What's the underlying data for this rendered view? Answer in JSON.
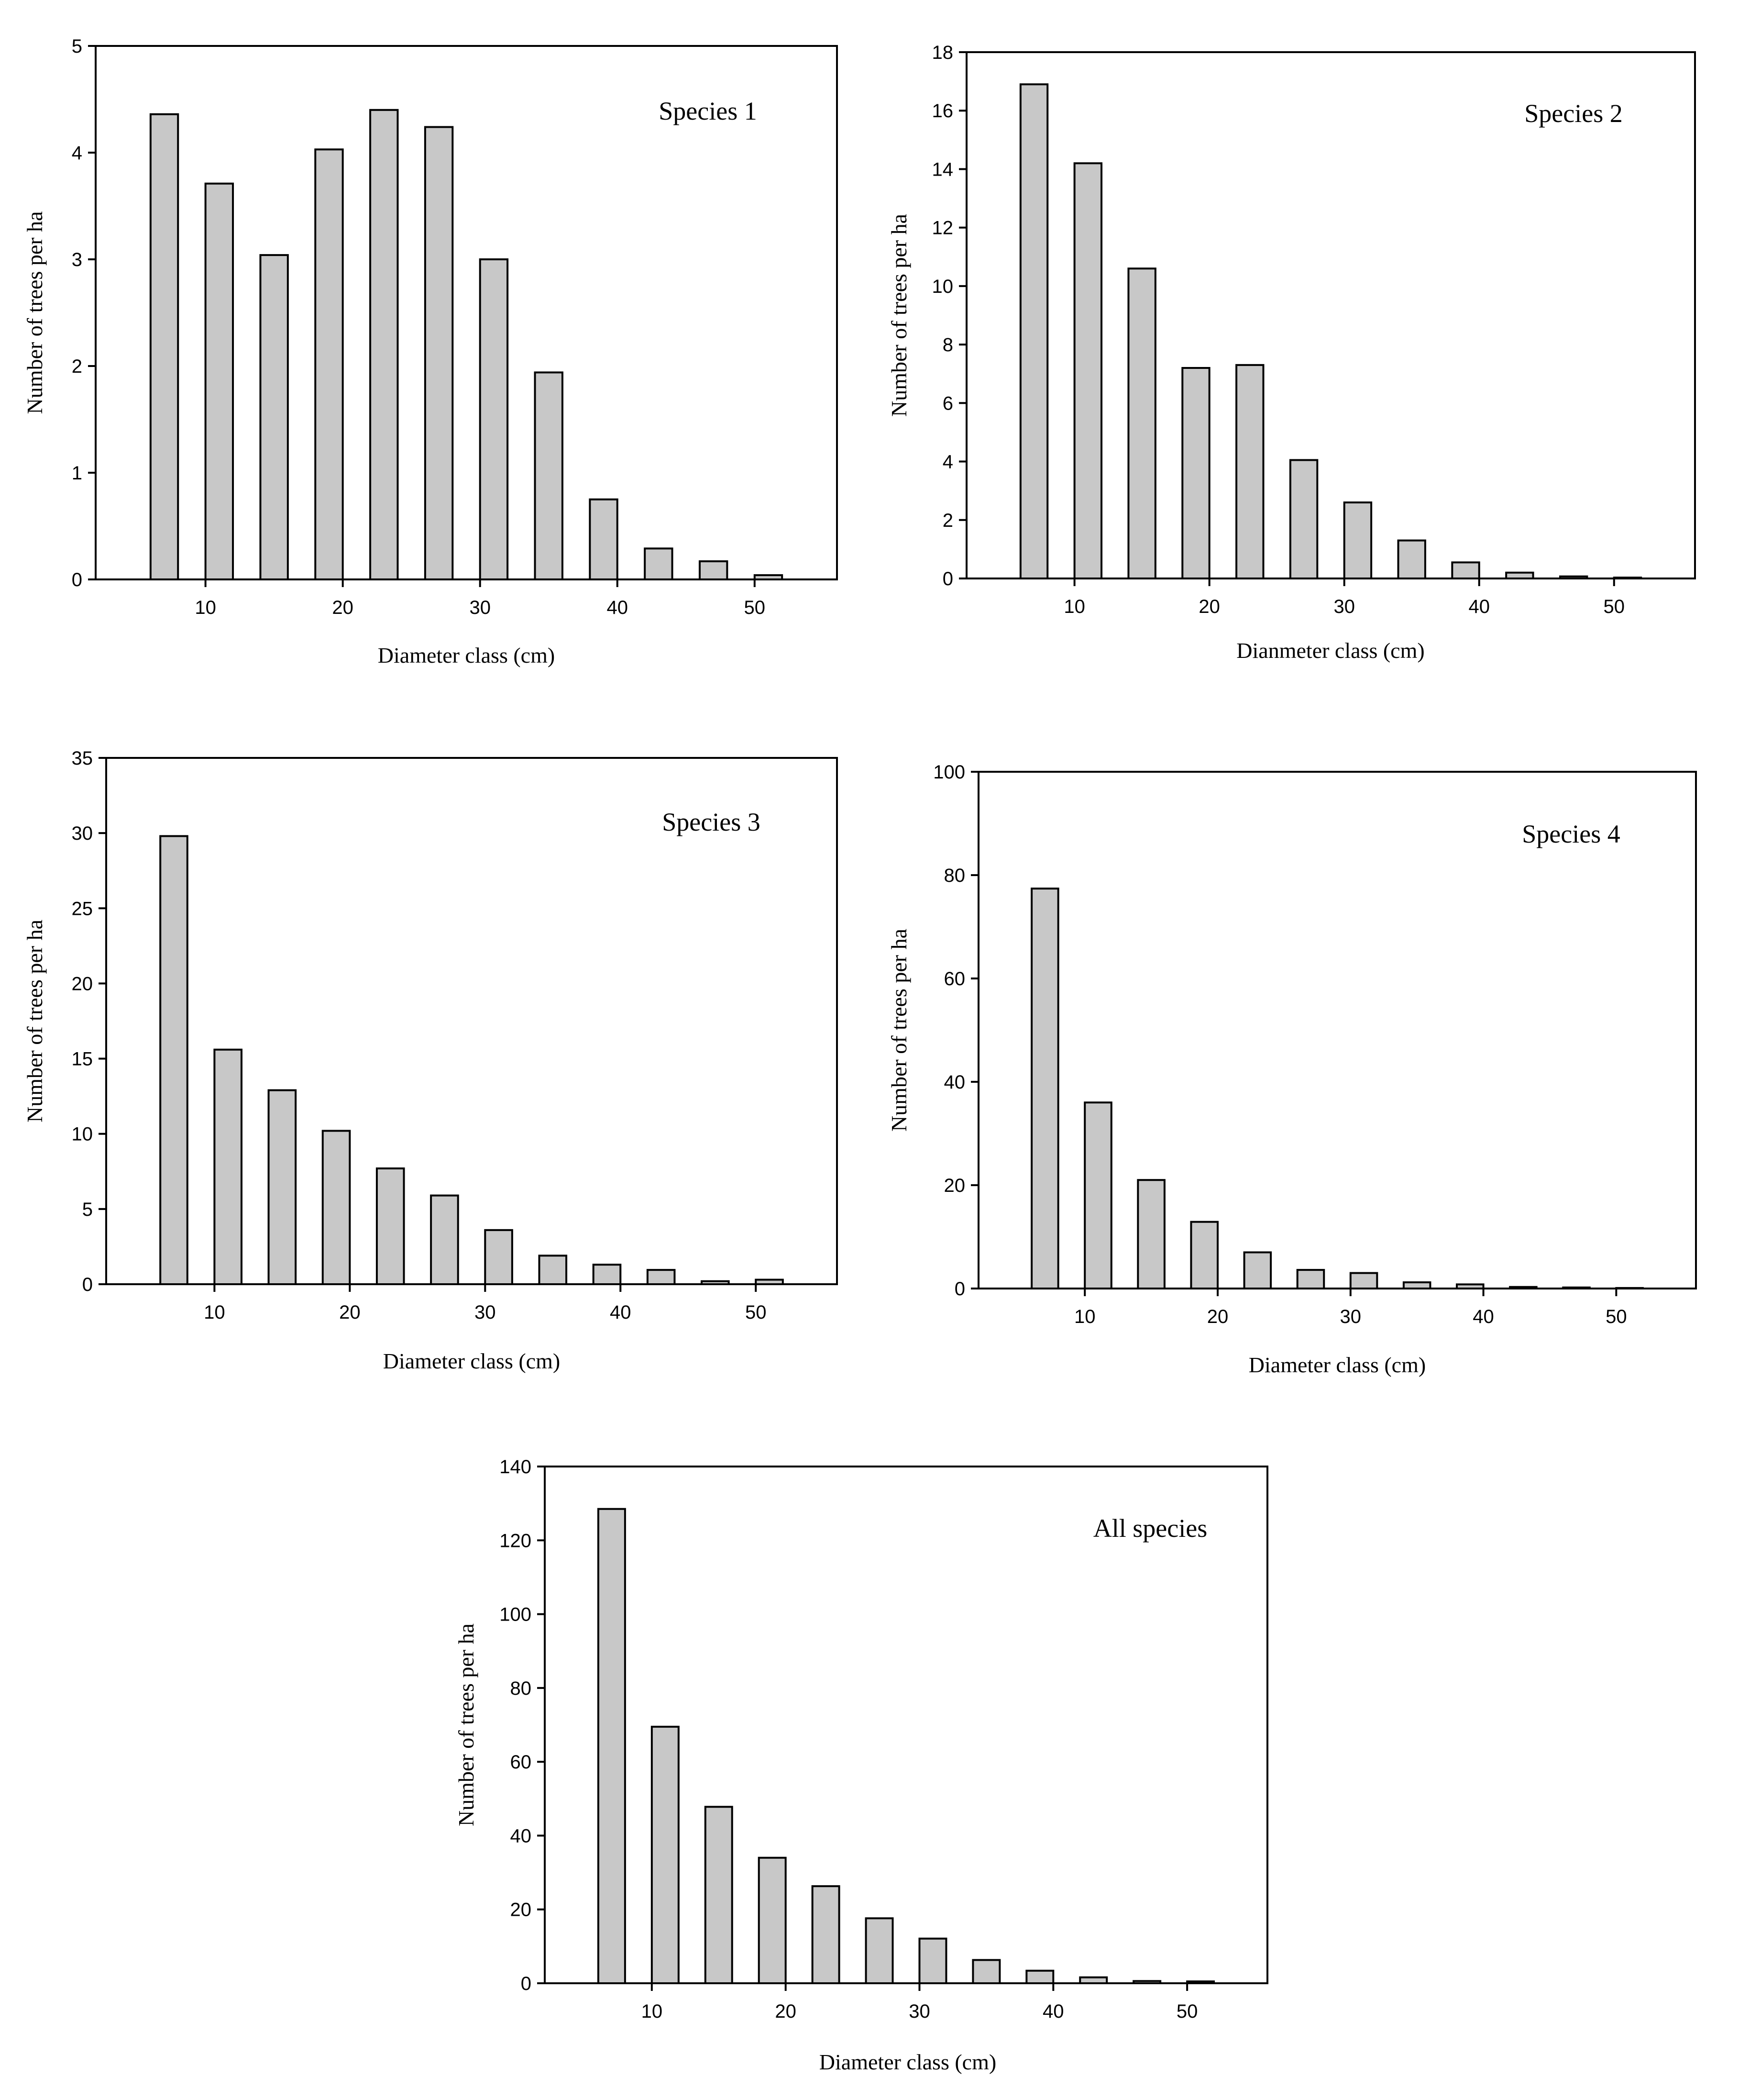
{
  "chart_data": [
    {
      "type": "bar",
      "title": "Species 1",
      "xlabel": "Diameter class (cm)",
      "ylabel": "Number of trees per ha",
      "x": [
        7,
        11,
        15,
        19,
        23,
        27,
        31,
        35,
        39,
        43,
        47,
        51
      ],
      "values": [
        4.36,
        3.71,
        3.04,
        4.03,
        4.4,
        4.24,
        3.0,
        1.94,
        0.75,
        0.29,
        0.17,
        0.04
      ],
      "xlim": [
        2,
        56
      ],
      "ylim": [
        0,
        5
      ],
      "xticks": [
        10,
        20,
        30,
        40,
        50
      ],
      "yticks": [
        0,
        1,
        2,
        3,
        4,
        5
      ],
      "legend": "none",
      "grid": false
    },
    {
      "type": "bar",
      "title": "Species 2",
      "xlabel": "Dianmeter class (cm)",
      "ylabel": "Number of trees per ha",
      "x": [
        7,
        11,
        15,
        19,
        23,
        27,
        31,
        35,
        39,
        43,
        47,
        51
      ],
      "values": [
        16.9,
        14.2,
        10.6,
        7.2,
        7.3,
        4.05,
        2.6,
        1.3,
        0.55,
        0.2,
        0.07,
        0.03
      ],
      "xlim": [
        2,
        56
      ],
      "ylim": [
        0,
        18
      ],
      "xticks": [
        10,
        20,
        30,
        40,
        50
      ],
      "yticks": [
        0,
        2,
        4,
        6,
        8,
        10,
        12,
        14,
        16,
        18
      ],
      "legend": "none",
      "grid": false
    },
    {
      "type": "bar",
      "title": "Species 3",
      "xlabel": "Diameter class (cm)",
      "ylabel": "Number of trees per ha",
      "x": [
        7,
        11,
        15,
        19,
        23,
        27,
        31,
        35,
        39,
        43,
        47,
        51
      ],
      "values": [
        29.8,
        15.6,
        12.9,
        10.2,
        7.7,
        5.9,
        3.6,
        1.9,
        1.3,
        0.95,
        0.2,
        0.3
      ],
      "xlim": [
        2,
        56
      ],
      "ylim": [
        0,
        35
      ],
      "xticks": [
        10,
        20,
        30,
        40,
        50
      ],
      "yticks": [
        0,
        5,
        10,
        15,
        20,
        25,
        30,
        35
      ],
      "legend": "none",
      "grid": false
    },
    {
      "type": "bar",
      "title": "Species 4",
      "xlabel": "Diameter class (cm)",
      "ylabel": "Number of trees per ha",
      "x": [
        7,
        11,
        15,
        19,
        23,
        27,
        31,
        35,
        39,
        43,
        47,
        51
      ],
      "values": [
        77.4,
        36.0,
        21.0,
        12.9,
        7.0,
        3.6,
        3.0,
        1.2,
        0.8,
        0.3,
        0.2,
        0.1
      ],
      "xlim": [
        2,
        56
      ],
      "ylim": [
        0,
        100
      ],
      "xticks": [
        10,
        20,
        30,
        40,
        50
      ],
      "yticks": [
        0,
        20,
        40,
        60,
        80,
        100
      ],
      "legend": "none",
      "grid": false
    },
    {
      "type": "bar",
      "title": "All species",
      "xlabel": "Diameter class (cm)",
      "ylabel": "Number of trees per ha",
      "x": [
        7,
        11,
        15,
        19,
        23,
        27,
        31,
        35,
        39,
        43,
        47,
        51
      ],
      "values": [
        128.5,
        69.5,
        47.8,
        34.0,
        26.3,
        17.6,
        12.1,
        6.3,
        3.4,
        1.6,
        0.6,
        0.5
      ],
      "xlim": [
        2,
        56
      ],
      "ylim": [
        0,
        140
      ],
      "xticks": [
        10,
        20,
        30,
        40,
        50
      ],
      "yticks": [
        0,
        20,
        40,
        60,
        80,
        100,
        120,
        140
      ],
      "legend": "none",
      "grid": false
    }
  ]
}
